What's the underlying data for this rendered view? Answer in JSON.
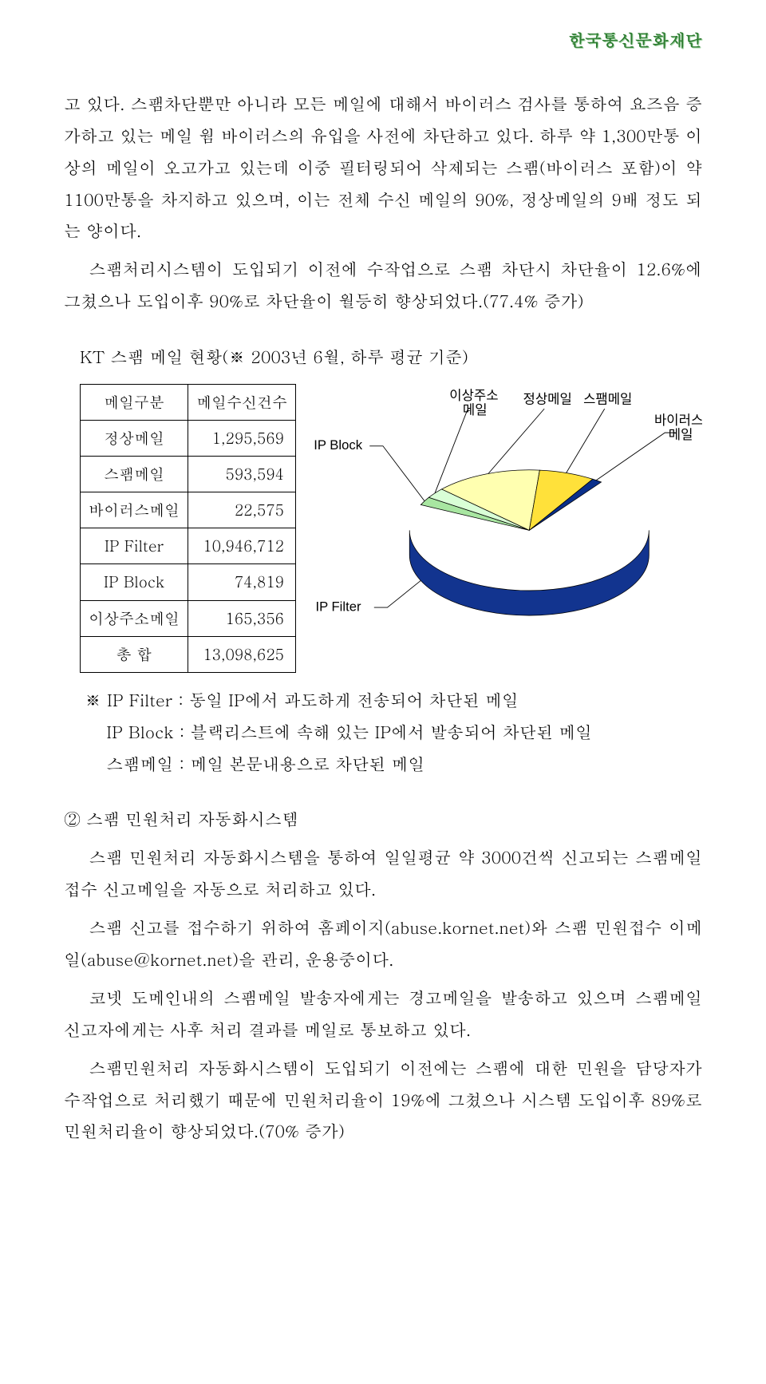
{
  "header": {
    "org": "한국통신문화재단"
  },
  "body": {
    "p1": "고 있다.  스팸차단뿐만 아니라 모든 메일에 대해서 바이러스 검사를 통하여 요즈음 증가하고 있는 메일 웜 바이러스의 유입을 사전에 차단하고 있다. 하루 약 1,300만통 이상의 메일이 오고가고 있는데 이중 필터링되어 삭제되는 스팸(바이러스 포함)이 약 1100만통을 차지하고 있으며, 이는 전체 수신 메일의 90%, 정상메일의 9배 정도 되는 양이다.",
    "p2": "스팸처리시스템이 도입되기 이전에 수작업으로 스팸 차단시 차단율이 12.6%에 그쳤으나 도입이후 90%로 차단율이 월등히 향상되었다.(77.4% 증가)"
  },
  "table": {
    "title": "KT 스팸 메일 현황(※ 2003년 6월, 하루 평균 기준)",
    "h1": "메일구분",
    "h2": "메일수신건수",
    "rows": [
      {
        "label": "정상메일",
        "value": "1,295,569"
      },
      {
        "label": "스팸메일",
        "value": "593,594"
      },
      {
        "label": "바이러스메일",
        "value": "22,575"
      },
      {
        "label": "IP Filter",
        "value": "10,946,712"
      },
      {
        "label": "IP Block",
        "value": "74,819"
      },
      {
        "label": "이상주소메일",
        "value": "165,356"
      },
      {
        "label": "총   합",
        "value": "13,098,625"
      }
    ]
  },
  "chart": {
    "type": "pie-3d",
    "labels": {
      "ipblock": "IP Block",
      "abnormal_top": "이상주소",
      "abnormal_bot": "메일",
      "normal": "정상메일",
      "spam": "스팸메일",
      "virus_top": "바이러스",
      "virus_bot": "메일",
      "ipfilter": "IP Filter"
    },
    "colors": {
      "ipfilter": "#1c4fd6",
      "ipfilter_side": "#12348f",
      "ipblock": "#a8e6a1",
      "abnormal": "#d9ffd6",
      "normal": "#ffffb0",
      "spam": "#ffe13a",
      "virus": "#0a2f8a",
      "label_text": "#000000",
      "leader": "#000000",
      "bg": "#ffffff"
    },
    "label_fontsize": 15
  },
  "notes": {
    "n1": "※ IP Filter : 동일 IP에서 과도하게 전송되어 차단된 메일",
    "n2": "IP Block : 블랙리스트에 속해 있는 IP에서 발송되어 차단된 메일",
    "n3": "스팸메일 : 메일 본문내용으로 차단된 메일"
  },
  "sec2": {
    "head": "② 스팸 민원처리 자동화시스템",
    "p1": "스팸 민원처리 자동화시스템을 통하여 일일평균 약 3000건씩 신고되는 스팸메일 접수 신고메일을 자동으로 처리하고 있다.",
    "p2": "스팸 신고를 접수하기 위하여 홈페이지(abuse.kornet.net)와 스팸 민원접수 이메일(abuse@kornet.net)을 관리, 운용중이다.",
    "p3": "코넷 도메인내의 스팸메일 발송자에게는 경고메일을 발송하고 있으며 스팸메일 신고자에게는 사후 처리 결과를 메일로 통보하고 있다.",
    "p4": "스팸민원처리 자동화시스템이 도입되기 이전에는 스팸에 대한 민원을 담당자가 수작업으로 처리했기 때문에 민원처리율이 19%에 그쳤으나 시스템 도입이후 89%로 민원처리율이 향상되었다.(70% 증가)"
  }
}
